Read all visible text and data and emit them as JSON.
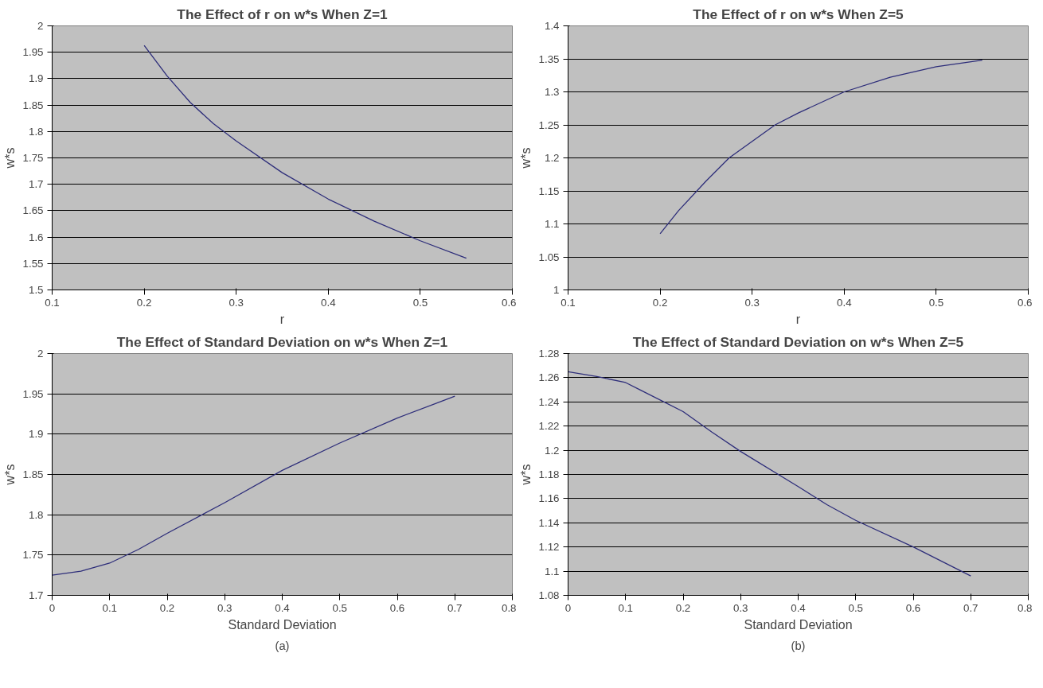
{
  "chart_data": [
    {
      "type": "line",
      "title": "The Effect of r on w*s When Z=1",
      "xlabel": "r",
      "ylabel": "w*s",
      "xlim": [
        0.1,
        0.6
      ],
      "xticks": [
        0.1,
        0.2,
        0.3,
        0.4,
        0.5,
        0.6
      ],
      "ylim": [
        1.5,
        2
      ],
      "yticks": [
        1.5,
        1.55,
        1.6,
        1.65,
        1.7,
        1.75,
        1.8,
        1.85,
        1.9,
        1.95,
        2
      ],
      "grid": "y",
      "x": [
        0.2,
        0.225,
        0.25,
        0.275,
        0.3,
        0.35,
        0.4,
        0.45,
        0.5,
        0.55
      ],
      "series": [
        {
          "color": "#2e2e7a",
          "values": [
            1.963,
            1.905,
            1.855,
            1.815,
            1.782,
            1.722,
            1.672,
            1.63,
            1.593,
            1.56
          ]
        }
      ]
    },
    {
      "type": "line",
      "title": "The Effect of r on w*s When Z=5",
      "xlabel": "r",
      "ylabel": "w*s",
      "xlim": [
        0.1,
        0.6
      ],
      "xticks": [
        0.1,
        0.2,
        0.3,
        0.4,
        0.5,
        0.6
      ],
      "ylim": [
        1,
        1.4
      ],
      "yticks": [
        1,
        1.05,
        1.1,
        1.15,
        1.2,
        1.25,
        1.3,
        1.35,
        1.4
      ],
      "grid": "y",
      "x": [
        0.2,
        0.22,
        0.25,
        0.275,
        0.3,
        0.325,
        0.35,
        0.4,
        0.45,
        0.5,
        0.55
      ],
      "series": [
        {
          "color": "#2e2e7a",
          "values": [
            1.085,
            1.12,
            1.165,
            1.2,
            1.225,
            1.25,
            1.268,
            1.3,
            1.322,
            1.338,
            1.348
          ]
        }
      ]
    },
    {
      "type": "line",
      "title": "The Effect of Standard Deviation on w*s When Z=1",
      "xlabel": "Standard Deviation",
      "ylabel": "w*s",
      "xlim": [
        0,
        0.8
      ],
      "xticks": [
        0,
        0.1,
        0.2,
        0.3,
        0.4,
        0.5,
        0.6,
        0.7,
        0.8
      ],
      "ylim": [
        1.7,
        2
      ],
      "yticks": [
        1.7,
        1.75,
        1.8,
        1.85,
        1.9,
        1.95,
        2
      ],
      "grid": "y",
      "annotations": [
        "(a)"
      ],
      "x": [
        0,
        0.05,
        0.1,
        0.15,
        0.2,
        0.3,
        0.4,
        0.5,
        0.6,
        0.7
      ],
      "series": [
        {
          "color": "#2e2e7a",
          "values": [
            1.725,
            1.73,
            1.74,
            1.757,
            1.777,
            1.815,
            1.855,
            1.889,
            1.92,
            1.947
          ]
        }
      ]
    },
    {
      "type": "line",
      "title": "The Effect of Standard Deviation on w*s When Z=5",
      "xlabel": "Standard Deviation",
      "ylabel": "w*s",
      "xlim": [
        0,
        0.8
      ],
      "xticks": [
        0,
        0.1,
        0.2,
        0.3,
        0.4,
        0.5,
        0.6,
        0.7,
        0.8
      ],
      "ylim": [
        1.08,
        1.28
      ],
      "yticks": [
        1.08,
        1.1,
        1.12,
        1.14,
        1.16,
        1.18,
        1.2,
        1.22,
        1.24,
        1.26,
        1.28
      ],
      "grid": "y",
      "annotations": [
        "(b)"
      ],
      "x": [
        0,
        0.05,
        0.1,
        0.125,
        0.2,
        0.25,
        0.3,
        0.4,
        0.45,
        0.5,
        0.6,
        0.7
      ],
      "series": [
        {
          "color": "#2e2e7a",
          "values": [
            1.265,
            1.261,
            1.256,
            1.25,
            1.232,
            1.215,
            1.199,
            1.17,
            1.155,
            1.142,
            1.12,
            1.096
          ]
        }
      ]
    }
  ]
}
